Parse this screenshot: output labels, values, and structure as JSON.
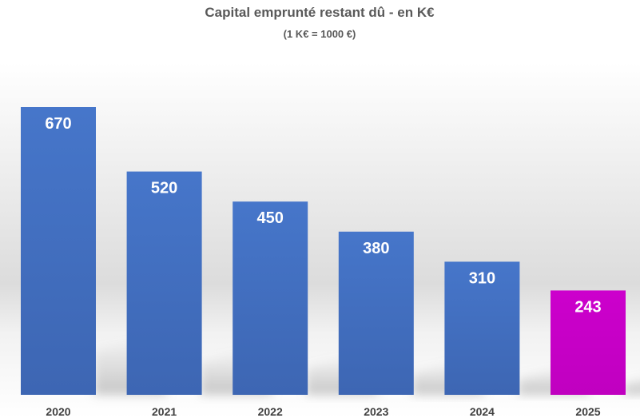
{
  "chart_data": {
    "type": "bar",
    "title": "Capital emprunté restant dû - en K€",
    "subtitle": "(1 K€ = 1000 €)",
    "categories": [
      "2020",
      "2021",
      "2022",
      "2023",
      "2024",
      "2025"
    ],
    "values": [
      670,
      520,
      450,
      380,
      310,
      243
    ],
    "data_labels": [
      "670",
      "520",
      "450",
      "380",
      "310",
      "243"
    ],
    "ylim": [
      0,
      720
    ],
    "grid": false,
    "legend": "none",
    "colors": {
      "bar": "#4472C4",
      "highlight_bar": "#CC00CC",
      "title": "#595959",
      "tick": "#404040",
      "data_label": "#FFFFFF"
    },
    "highlight_index": 5
  }
}
